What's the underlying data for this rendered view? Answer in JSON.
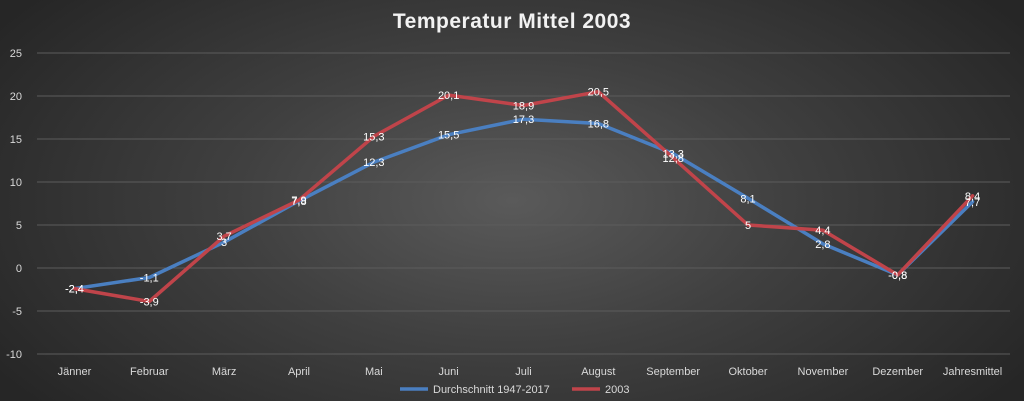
{
  "chart_data": {
    "type": "line",
    "title": "Temperatur Mittel 2003",
    "categories": [
      "Jänner",
      "Februar",
      "März",
      "April",
      "Mai",
      "Juni",
      "Juli",
      "August",
      "September",
      "Oktober",
      "November",
      "Dezember",
      "Jahresmittel"
    ],
    "ylim": [
      -10,
      25
    ],
    "yticks": [
      -10,
      -5,
      0,
      5,
      10,
      15,
      20,
      25
    ],
    "grid": true,
    "legend_position": "bottom",
    "series": [
      {
        "name": "Durchschnitt 1947-2017",
        "color": "#4a7fc1",
        "values": [
          -2.4,
          -1.1,
          3,
          7.8,
          12.3,
          15.5,
          17.3,
          16.8,
          13.3,
          8.1,
          2.8,
          -0.8,
          7.7
        ],
        "labels": [
          "-2,4",
          "-1,1",
          "3",
          "7,8",
          "12,3",
          "15,5",
          "17,3",
          "16,8",
          "13,3",
          "8,1",
          "2,8",
          "-0,8",
          "7,7"
        ]
      },
      {
        "name": "2003",
        "color": "#c0444a",
        "values": [
          -2.4,
          -3.9,
          3.7,
          7.9,
          15.3,
          20.1,
          18.9,
          20.5,
          12.8,
          5,
          4.4,
          -0.8,
          8.4
        ],
        "labels": [
          "-2,4",
          "-3,9",
          "3,7",
          "7,9",
          "15,3",
          "20,1",
          "18,9",
          "20,5",
          "12,8",
          "5",
          "4,4",
          "-0,8",
          "8,4"
        ]
      }
    ]
  }
}
